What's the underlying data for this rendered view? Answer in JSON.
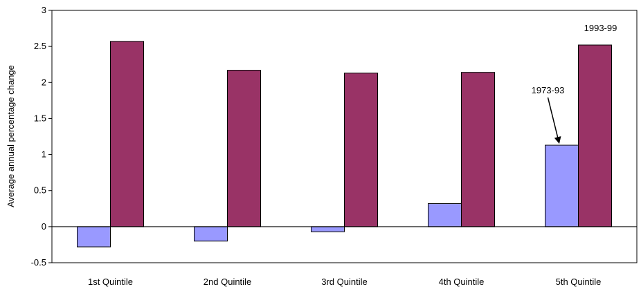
{
  "chart_data": {
    "type": "bar",
    "title": "",
    "xlabel": "",
    "ylabel": "Average annual percentage change",
    "categories": [
      "1st Quintile",
      "2nd Quintile",
      "3rd Quintile",
      "4th Quintile",
      "5th Quintile"
    ],
    "series": [
      {
        "name": "1973-93",
        "color": "#9999ff",
        "values": [
          -0.28,
          -0.2,
          -0.07,
          0.32,
          1.13
        ]
      },
      {
        "name": "1993-99",
        "color": "#993366",
        "values": [
          2.57,
          2.17,
          2.13,
          2.14,
          2.52
        ]
      }
    ],
    "ylim": [
      -0.5,
      3
    ],
    "yticks": [
      -0.5,
      0,
      0.5,
      1,
      1.5,
      2,
      2.5,
      3
    ],
    "ytick_labels": [
      "-0.5",
      "0",
      "0.5",
      "1",
      "1.5",
      "2",
      "2.5",
      "3"
    ],
    "grid": false,
    "legend": "none",
    "annotations": [
      {
        "text": "1973-93",
        "series": 0,
        "category": 4,
        "arrow": true
      },
      {
        "text": "1993-99",
        "series": 1,
        "category": 4,
        "arrow": false
      }
    ]
  }
}
